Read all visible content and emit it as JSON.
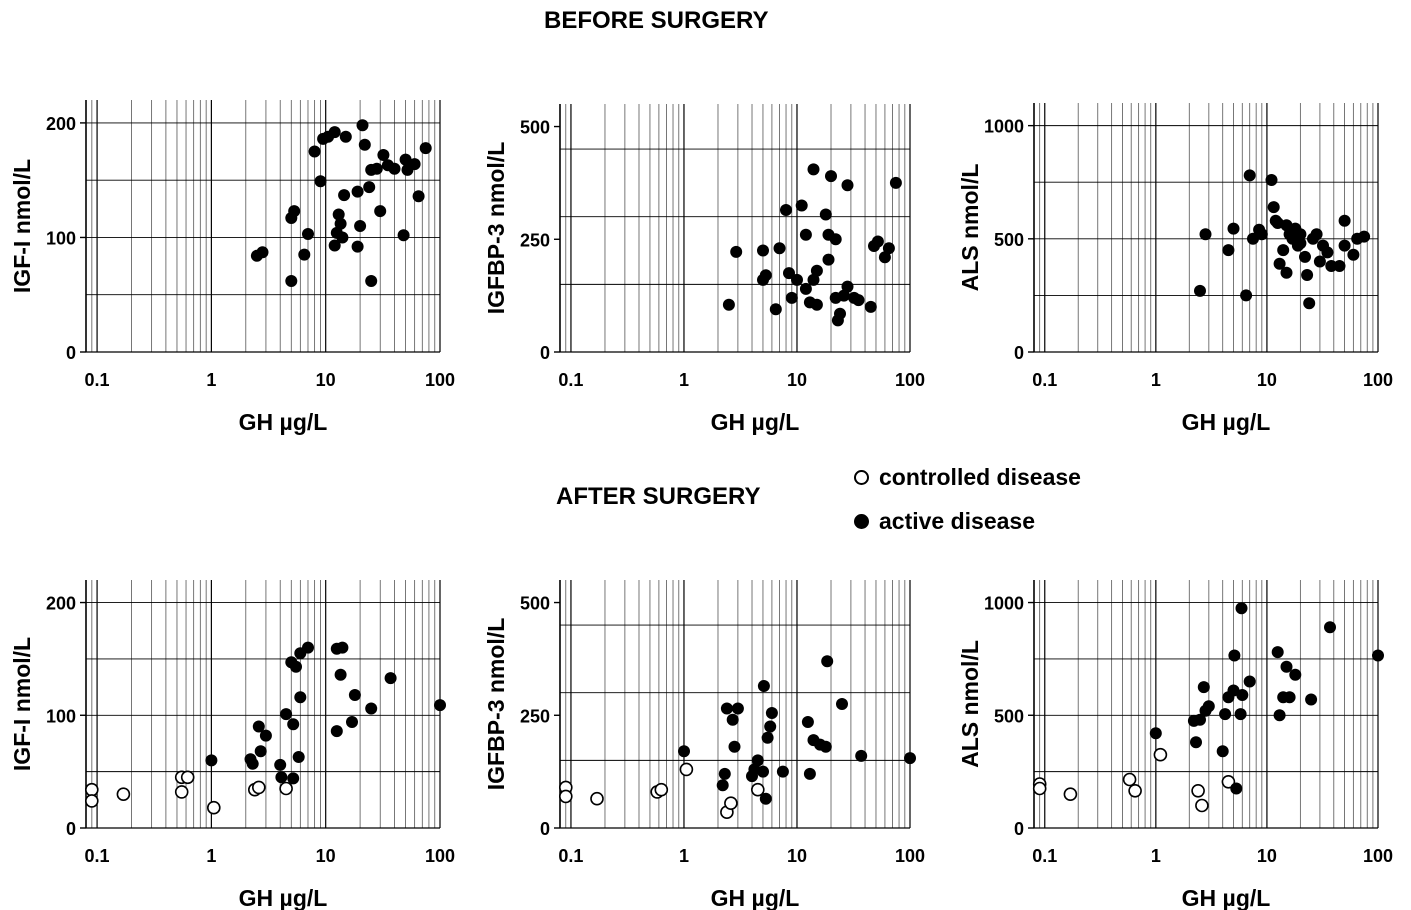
{
  "headings": {
    "before": "BEFORE SURGERY",
    "after": "AFTER SURGERY"
  },
  "legend": {
    "controlled": "controlled disease",
    "active": "active disease"
  },
  "colors": {
    "marker": "#000000",
    "grid_major": "#000000",
    "grid_minor": "#555555"
  },
  "chart_data": [
    {
      "id": "before-igf1",
      "type": "scatter",
      "panel": "BEFORE SURGERY",
      "xlabel": "GH µg/L",
      "ylabel": "IGF-I nmol/L",
      "xscale": "log",
      "xlim": [
        0.08,
        100
      ],
      "ylim": [
        0,
        220
      ],
      "xticks": [
        "0.1",
        "1",
        "10",
        "100"
      ],
      "yticks": [
        "0",
        "100",
        "200"
      ],
      "series": [
        {
          "name": "active disease",
          "marker": "filled",
          "points": [
            [
              2.5,
              84
            ],
            [
              2.8,
              87
            ],
            [
              5.0,
              62
            ],
            [
              5.0,
              117
            ],
            [
              5.3,
              123
            ],
            [
              6.5,
              85
            ],
            [
              7.0,
              103
            ],
            [
              8.0,
              175
            ],
            [
              9.0,
              149
            ],
            [
              9.5,
              186
            ],
            [
              10.5,
              188
            ],
            [
              12,
              192
            ],
            [
              12,
              93
            ],
            [
              12.5,
              104
            ],
            [
              13,
              120
            ],
            [
              13.5,
              112
            ],
            [
              14,
              100
            ],
            [
              14.5,
              137
            ],
            [
              15,
              188
            ],
            [
              19,
              92
            ],
            [
              19,
              140
            ],
            [
              20,
              110
            ],
            [
              21,
              198
            ],
            [
              22,
              181
            ],
            [
              24,
              144
            ],
            [
              25,
              62
            ],
            [
              25,
              159
            ],
            [
              28,
              160
            ],
            [
              30,
              123
            ],
            [
              32,
              172
            ],
            [
              35,
              163
            ],
            [
              40,
              160
            ],
            [
              48,
              102
            ],
            [
              50,
              168
            ],
            [
              52,
              159
            ],
            [
              60,
              164
            ],
            [
              65,
              136
            ],
            [
              75,
              178
            ]
          ]
        }
      ]
    },
    {
      "id": "before-igfbp3",
      "type": "scatter",
      "panel": "BEFORE SURGERY",
      "xlabel": "GH µg/L",
      "ylabel": "IGFBP-3 nmol/L",
      "xscale": "log",
      "xlim": [
        0.08,
        100
      ],
      "ylim": [
        0,
        550
      ],
      "xticks": [
        "0.1",
        "1",
        "10",
        "100"
      ],
      "yticks": [
        "0",
        "250",
        "500"
      ],
      "series": [
        {
          "name": "active disease",
          "marker": "filled",
          "points": [
            [
              2.5,
              105
            ],
            [
              2.9,
              222
            ],
            [
              5.0,
              160
            ],
            [
              5.0,
              225
            ],
            [
              5.3,
              170
            ],
            [
              6.5,
              95
            ],
            [
              7.0,
              230
            ],
            [
              8.0,
              315
            ],
            [
              8.5,
              175
            ],
            [
              9.0,
              120
            ],
            [
              10,
              160
            ],
            [
              11,
              325
            ],
            [
              12,
              260
            ],
            [
              12,
              140
            ],
            [
              13,
              110
            ],
            [
              14,
              405
            ],
            [
              14,
              160
            ],
            [
              15,
              105
            ],
            [
              15,
              180
            ],
            [
              18,
              305
            ],
            [
              19,
              205
            ],
            [
              19,
              260
            ],
            [
              20,
              390
            ],
            [
              22,
              250
            ],
            [
              22,
              120
            ],
            [
              23,
              70
            ],
            [
              24,
              85
            ],
            [
              26,
              125
            ],
            [
              28,
              370
            ],
            [
              28,
              145
            ],
            [
              32,
              120
            ],
            [
              35,
              115
            ],
            [
              45,
              100
            ],
            [
              48,
              235
            ],
            [
              52,
              245
            ],
            [
              60,
              210
            ],
            [
              65,
              230
            ],
            [
              75,
              375
            ]
          ]
        }
      ]
    },
    {
      "id": "before-als",
      "type": "scatter",
      "panel": "BEFORE SURGERY",
      "xlabel": "GH µg/L",
      "ylabel": "ALS nmol/L",
      "xscale": "log",
      "xlim": [
        0.08,
        100
      ],
      "ylim": [
        0,
        1100
      ],
      "xticks": [
        "0.1",
        "1",
        "10",
        "100"
      ],
      "yticks": [
        "0",
        "500",
        "1000"
      ],
      "series": [
        {
          "name": "active disease",
          "marker": "filled",
          "points": [
            [
              2.5,
              270
            ],
            [
              2.8,
              520
            ],
            [
              4.5,
              450
            ],
            [
              5.0,
              545
            ],
            [
              6.5,
              250
            ],
            [
              7.0,
              780
            ],
            [
              7.5,
              500
            ],
            [
              8.5,
              540
            ],
            [
              9.0,
              520
            ],
            [
              11,
              760
            ],
            [
              11.5,
              640
            ],
            [
              12,
              580
            ],
            [
              12.5,
              570
            ],
            [
              13,
              390
            ],
            [
              14,
              450
            ],
            [
              15,
              560
            ],
            [
              15,
              350
            ],
            [
              16,
              520
            ],
            [
              17,
              500
            ],
            [
              18,
              545
            ],
            [
              19,
              470
            ],
            [
              20,
              480
            ],
            [
              20,
              520
            ],
            [
              22,
              420
            ],
            [
              23,
              340
            ],
            [
              24,
              215
            ],
            [
              26,
              500
            ],
            [
              28,
              520
            ],
            [
              30,
              400
            ],
            [
              32,
              470
            ],
            [
              35,
              440
            ],
            [
              38,
              380
            ],
            [
              45,
              380
            ],
            [
              50,
              580
            ],
            [
              50,
              470
            ],
            [
              60,
              430
            ],
            [
              65,
              500
            ],
            [
              75,
              510
            ]
          ]
        }
      ]
    },
    {
      "id": "after-igf1",
      "type": "scatter",
      "panel": "AFTER SURGERY",
      "xlabel": "GH µg/L",
      "ylabel": "IGF-I nmol/L",
      "xscale": "log",
      "xlim": [
        0.08,
        100
      ],
      "ylim": [
        0,
        220
      ],
      "xticks": [
        "0.1",
        "1",
        "10",
        "100"
      ],
      "yticks": [
        "0",
        "100",
        "200"
      ],
      "series": [
        {
          "name": "controlled disease",
          "marker": "open",
          "points": [
            [
              0.09,
              34
            ],
            [
              0.09,
              24
            ],
            [
              0.17,
              30
            ],
            [
              0.55,
              45
            ],
            [
              0.55,
              32
            ],
            [
              0.62,
              45
            ],
            [
              1.05,
              18
            ],
            [
              2.4,
              34
            ],
            [
              2.6,
              36
            ],
            [
              4.5,
              35
            ]
          ]
        },
        {
          "name": "active disease",
          "marker": "filled",
          "points": [
            [
              1.0,
              60
            ],
            [
              2.2,
              61
            ],
            [
              2.3,
              57
            ],
            [
              2.6,
              90
            ],
            [
              2.7,
              68
            ],
            [
              3.0,
              82
            ],
            [
              4.0,
              56
            ],
            [
              4.1,
              45
            ],
            [
              4.5,
              101
            ],
            [
              5.0,
              147
            ],
            [
              5.2,
              92
            ],
            [
              5.2,
              44
            ],
            [
              5.5,
              143
            ],
            [
              5.8,
              63
            ],
            [
              6.0,
              155
            ],
            [
              6.0,
              116
            ],
            [
              7.0,
              160
            ],
            [
              12.5,
              159
            ],
            [
              12.5,
              86
            ],
            [
              13.5,
              136
            ],
            [
              14,
              160
            ],
            [
              17,
              94
            ],
            [
              18,
              118
            ],
            [
              25,
              106
            ],
            [
              37,
              133
            ],
            [
              100,
              109
            ]
          ]
        }
      ]
    },
    {
      "id": "after-igfbp3",
      "type": "scatter",
      "panel": "AFTER SURGERY",
      "xlabel": "GH µg/L",
      "ylabel": "IGFBP-3 nmol/L",
      "xscale": "log",
      "xlim": [
        0.08,
        100
      ],
      "ylim": [
        0,
        550
      ],
      "xticks": [
        "0.1",
        "1",
        "10",
        "100"
      ],
      "yticks": [
        "0",
        "250",
        "500"
      ],
      "series": [
        {
          "name": "controlled disease",
          "marker": "open",
          "points": [
            [
              0.09,
              90
            ],
            [
              0.09,
              70
            ],
            [
              0.17,
              65
            ],
            [
              0.58,
              80
            ],
            [
              0.63,
              85
            ],
            [
              1.05,
              130
            ],
            [
              2.4,
              35
            ],
            [
              2.6,
              55
            ],
            [
              4.5,
              85
            ]
          ]
        },
        {
          "name": "active disease",
          "marker": "filled",
          "points": [
            [
              1.0,
              170
            ],
            [
              2.2,
              95
            ],
            [
              2.3,
              120
            ],
            [
              2.4,
              265
            ],
            [
              2.7,
              240
            ],
            [
              2.8,
              180
            ],
            [
              3.0,
              265
            ],
            [
              4.0,
              115
            ],
            [
              4.2,
              130
            ],
            [
              4.5,
              150
            ],
            [
              5.0,
              125
            ],
            [
              5.1,
              315
            ],
            [
              5.3,
              65
            ],
            [
              5.5,
              200
            ],
            [
              5.8,
              225
            ],
            [
              6.0,
              255
            ],
            [
              7.5,
              125
            ],
            [
              12.5,
              235
            ],
            [
              13,
              120
            ],
            [
              14,
              195
            ],
            [
              16,
              185
            ],
            [
              18,
              180
            ],
            [
              18.5,
              370
            ],
            [
              25,
              275
            ],
            [
              37,
              160
            ],
            [
              100,
              155
            ]
          ]
        }
      ]
    },
    {
      "id": "after-als",
      "type": "scatter",
      "panel": "AFTER SURGERY",
      "xlabel": "GH µg/L",
      "ylabel": "ALS nmol/L",
      "xscale": "log",
      "xlim": [
        0.08,
        100
      ],
      "ylim": [
        0,
        1100
      ],
      "xticks": [
        "0.1",
        "1",
        "10",
        "100"
      ],
      "yticks": [
        "0",
        "500",
        "1000"
      ],
      "series": [
        {
          "name": "controlled disease",
          "marker": "open",
          "points": [
            [
              0.09,
              195
            ],
            [
              0.09,
              175
            ],
            [
              0.17,
              150
            ],
            [
              0.58,
              215
            ],
            [
              0.65,
              165
            ],
            [
              1.1,
              325
            ],
            [
              2.4,
              165
            ],
            [
              2.6,
              100
            ],
            [
              4.5,
              205
            ]
          ]
        },
        {
          "name": "active disease",
          "marker": "filled",
          "points": [
            [
              1.0,
              420
            ],
            [
              2.2,
              475
            ],
            [
              2.3,
              380
            ],
            [
              2.5,
              480
            ],
            [
              2.7,
              625
            ],
            [
              2.8,
              520
            ],
            [
              3.0,
              540
            ],
            [
              4.0,
              340
            ],
            [
              4.2,
              505
            ],
            [
              4.5,
              580
            ],
            [
              5.0,
              610
            ],
            [
              5.1,
              765
            ],
            [
              5.3,
              175
            ],
            [
              5.8,
              505
            ],
            [
              5.9,
              975
            ],
            [
              6.0,
              590
            ],
            [
              7.0,
              650
            ],
            [
              12.5,
              780
            ],
            [
              13,
              500
            ],
            [
              14,
              580
            ],
            [
              15,
              715
            ],
            [
              16,
              580
            ],
            [
              18,
              680
            ],
            [
              25,
              570
            ],
            [
              37,
              890
            ],
            [
              100,
              765
            ]
          ]
        }
      ]
    }
  ]
}
